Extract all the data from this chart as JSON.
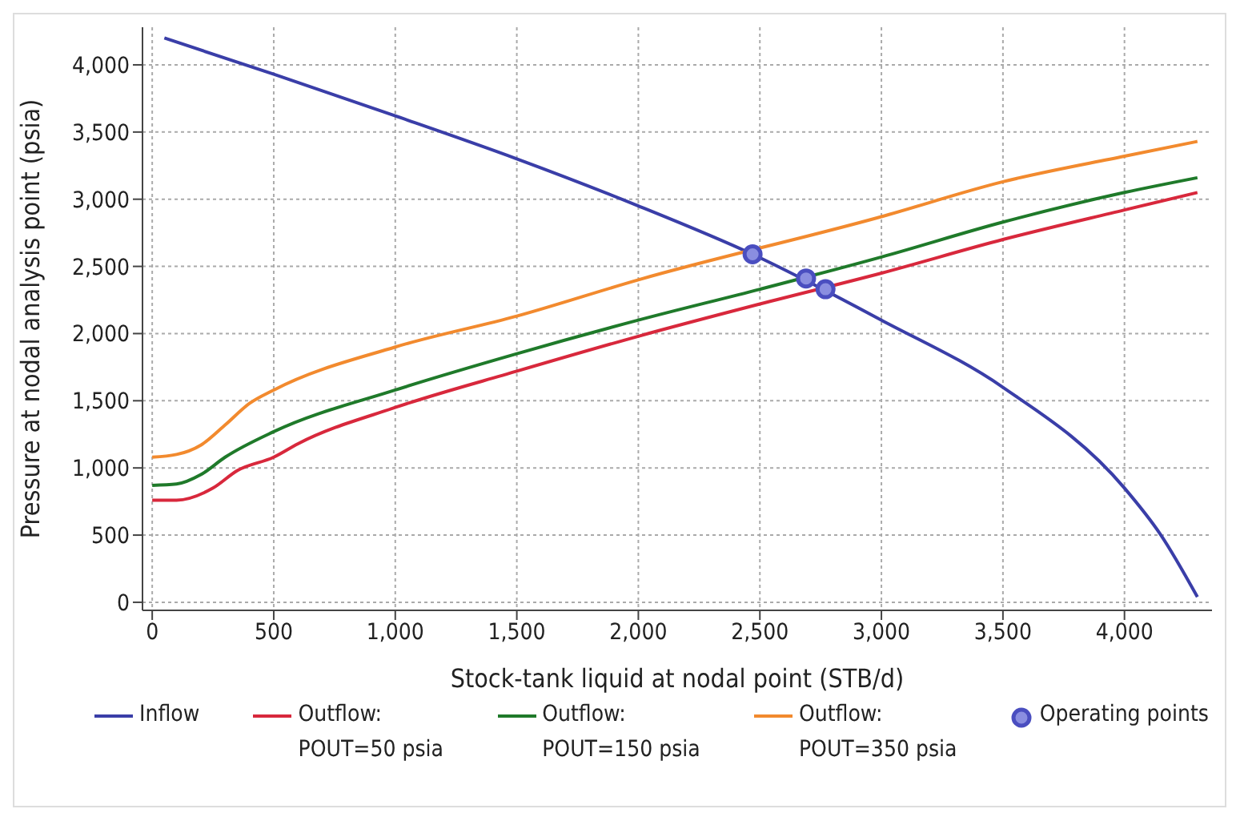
{
  "chart_data": {
    "type": "line",
    "xlabel": "Stock-tank liquid at nodal point (STB/d)",
    "ylabel": "Pressure at nodal analysis point (psia)",
    "xlim": [
      -40,
      4360
    ],
    "xticks": [
      {
        "value": 0,
        "label": "0"
      },
      {
        "value": 500,
        "label": "500"
      },
      {
        "value": 1000,
        "label": "1,000"
      },
      {
        "value": 1500,
        "label": "1,500"
      },
      {
        "value": 2000,
        "label": "2,000"
      },
      {
        "value": 2500,
        "label": "2,500"
      },
      {
        "value": 3000,
        "label": "3,000"
      },
      {
        "value": 3500,
        "label": "3,500"
      },
      {
        "value": 4000,
        "label": "4,000"
      }
    ],
    "ylim": [
      -60,
      4280
    ],
    "yticks": [
      {
        "value": 0,
        "label": "0"
      },
      {
        "value": 500,
        "label": "500"
      },
      {
        "value": 1000,
        "label": "1,000"
      },
      {
        "value": 1500,
        "label": "1,500"
      },
      {
        "value": 2000,
        "label": "2,000"
      },
      {
        "value": 2500,
        "label": "2,500"
      },
      {
        "value": 3000,
        "label": "3,000"
      },
      {
        "value": 3500,
        "label": "3,500"
      },
      {
        "value": 4000,
        "label": "4,000"
      }
    ],
    "grid": true,
    "legend": "bottom",
    "marker": "none",
    "line_style": "solid",
    "series": [
      {
        "name": "Inflow",
        "color": "#3a3ea8",
        "x": [
          50,
          500,
          1000,
          1500,
          2000,
          2470,
          3000,
          3500,
          4000,
          4150,
          4300
        ],
        "values": [
          4200,
          3930,
          3620,
          3300,
          2950,
          2590,
          2100,
          1600,
          850,
          500,
          40
        ]
      },
      {
        "name": "Outflow:\nPOUT=50 psia",
        "color": "#d8283c",
        "x": [
          0,
          100,
          250,
          350,
          500,
          600,
          1000,
          1500,
          2000,
          2500,
          3000,
          3500,
          4000,
          4300
        ],
        "values": [
          760,
          760,
          850,
          980,
          1080,
          1180,
          1450,
          1720,
          1980,
          2220,
          2450,
          2700,
          2920,
          3050
        ]
      },
      {
        "name": "Outflow:\nPOUT=150 psia",
        "color": "#1f7a2a",
        "x": [
          0,
          100,
          200,
          300,
          500,
          1000,
          1500,
          2000,
          2500,
          3000,
          3500,
          4000,
          4300
        ],
        "values": [
          870,
          880,
          950,
          1080,
          1270,
          1580,
          1850,
          2100,
          2330,
          2570,
          2830,
          3050,
          3160
        ]
      },
      {
        "name": "Outflow:\nPOUT=350 psia",
        "color": "#f28a2e",
        "x": [
          0,
          100,
          200,
          300,
          400,
          500,
          1000,
          1500,
          2000,
          3000,
          3500,
          4000,
          4300
        ],
        "values": [
          1080,
          1100,
          1170,
          1320,
          1480,
          1580,
          1900,
          2130,
          2400,
          2870,
          3130,
          3320,
          3430
        ]
      },
      {
        "name": "Operating points",
        "type": "scatter",
        "marker": "circle",
        "color": "#4a4ec0",
        "x": [
          2470,
          2690,
          2770
        ],
        "values": [
          2590,
          2410,
          2330
        ]
      }
    ]
  }
}
